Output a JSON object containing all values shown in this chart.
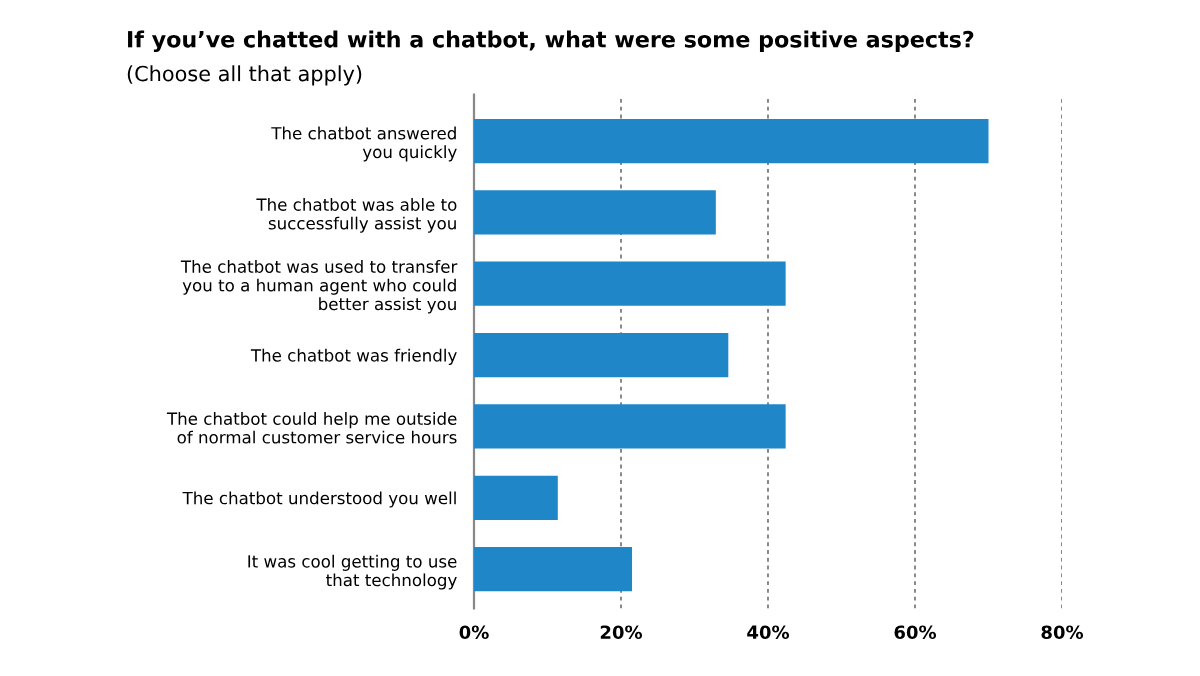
{
  "chart_data": {
    "type": "bar",
    "orientation": "horizontal",
    "title": "If you’ve chatted with a chatbot, what were some positive aspects?",
    "subtitle": "(Choose all that apply)",
    "categories": [
      "The chatbot answered\nyou quickly",
      "The chatbot was able to\nsuccessfully assist you",
      "The chatbot was used to transfer\nyou to a human agent who could\nbetter assist you",
      "The chatbot was friendly",
      "The chatbot could help me outside\nof normal customer service hours",
      "The chatbot understood you well",
      "It was cool getting to use\nthat technology"
    ],
    "values": [
      70.0,
      32.9,
      42.4,
      34.6,
      42.4,
      11.4,
      21.5
    ],
    "color": "#1f86c8",
    "xlim": [
      0,
      80
    ],
    "xticks": [
      {
        "value": 0,
        "label": "0%"
      },
      {
        "value": 20,
        "label": "20%"
      },
      {
        "value": 40,
        "label": "40%"
      },
      {
        "value": 60,
        "label": "60%"
      },
      {
        "value": 80,
        "label": "80%"
      }
    ],
    "grid": "x"
  }
}
